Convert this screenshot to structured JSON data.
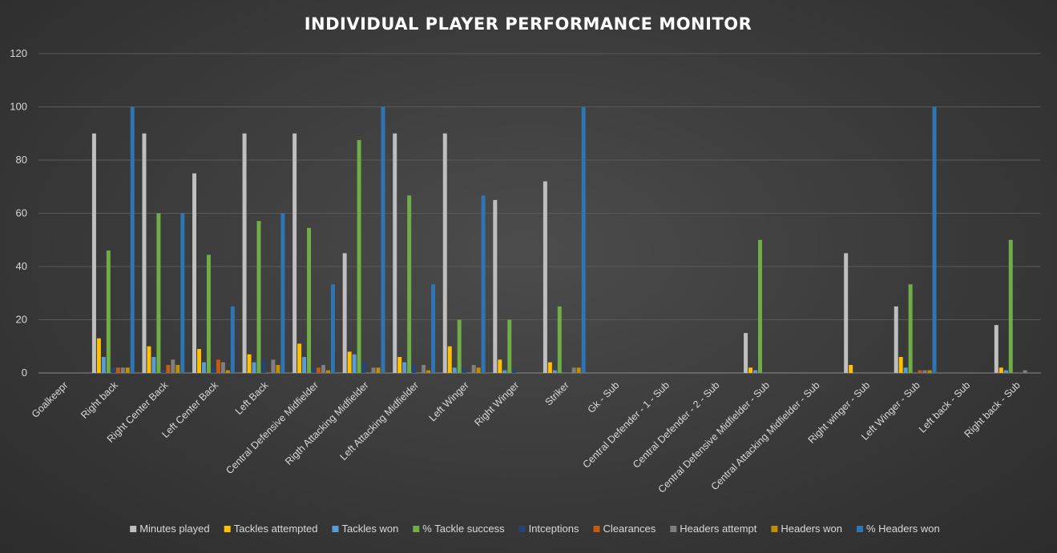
{
  "chart_data": {
    "type": "bar",
    "title": "INDIVIDUAL PLAYER PERFORMANCE MONITOR",
    "xlabel": "",
    "ylabel": "",
    "ylim": [
      0,
      120
    ],
    "yticks": [
      0,
      20,
      40,
      60,
      80,
      100,
      120
    ],
    "grid": true,
    "legend_position": "bottom",
    "categories": [
      "Goalkeepr",
      "Right back",
      "Right Center Back",
      "Left Center Back",
      "Left Back",
      "Central Defensive Midfielder",
      "Rigth Attacking Midfielder",
      "Left Attacking Midfielder",
      "Left Winger",
      "Right Winger",
      "Striker",
      "Gk - Sub",
      "Central Defender - 1 - Sub",
      "Central Defender - 2 - Sub",
      "Central Defensive Midfielder - Sub",
      "Central Attacking Midfielder - Sub",
      "Right winger - Sub",
      "Left Winger - Sub",
      "Left back - Sub",
      "Right back - Sub"
    ],
    "series": [
      {
        "name": "Minutes played",
        "color": "#bfbfbf",
        "values": [
          0,
          90,
          90,
          75,
          90,
          90,
          45,
          90,
          90,
          65,
          72,
          0,
          0,
          0,
          15,
          0,
          45,
          25,
          0,
          18
        ]
      },
      {
        "name": "Tackles attempted",
        "color": "#ffc000",
        "values": [
          0,
          13,
          10,
          9,
          7,
          11,
          8,
          6,
          10,
          5,
          4,
          0,
          0,
          0,
          2,
          0,
          3,
          6,
          0,
          2
        ]
      },
      {
        "name": "Tackles won",
        "color": "#5b9bd5",
        "values": [
          0,
          6,
          6,
          4,
          4,
          6,
          7,
          4,
          2,
          1,
          1,
          0,
          0,
          0,
          1,
          0,
          0,
          2,
          0,
          1
        ]
      },
      {
        "name": "% Tackle success",
        "color": "#70ad47",
        "values": [
          0,
          46,
          60,
          44.4,
          57.1,
          54.5,
          87.5,
          66.7,
          20,
          20,
          25,
          0,
          0,
          0,
          50,
          0,
          0,
          33.3,
          0,
          50
        ]
      },
      {
        "name": "Intceptions",
        "color": "#264478",
        "values": [
          0,
          2,
          1,
          2,
          5,
          2,
          4,
          3,
          2,
          1,
          0,
          0,
          0,
          0,
          0,
          0,
          0,
          0,
          0,
          0
        ]
      },
      {
        "name": "Clearances",
        "color": "#c55a11",
        "values": [
          0,
          2,
          3,
          5,
          0,
          2,
          0,
          0,
          0,
          0,
          0,
          0,
          0,
          0,
          0,
          0,
          0,
          1,
          0,
          0
        ]
      },
      {
        "name": "Headers attempt",
        "color": "#7f7f7f",
        "values": [
          0,
          2,
          5,
          4,
          5,
          3,
          2,
          3,
          3,
          0,
          2,
          0,
          0,
          0,
          0,
          0,
          0,
          1,
          0,
          1
        ]
      },
      {
        "name": "Headers won",
        "color": "#bf9000",
        "values": [
          0,
          2,
          3,
          1,
          3,
          1,
          2,
          1,
          2,
          0,
          2,
          0,
          0,
          0,
          0,
          0,
          0,
          1,
          0,
          0
        ]
      },
      {
        "name": "% Headers won",
        "color": "#2e75b6",
        "values": [
          0,
          100,
          60,
          25,
          60,
          33.3,
          100,
          33.3,
          66.7,
          0,
          100,
          0,
          0,
          0,
          0,
          0,
          0,
          100,
          0,
          0
        ]
      }
    ]
  }
}
